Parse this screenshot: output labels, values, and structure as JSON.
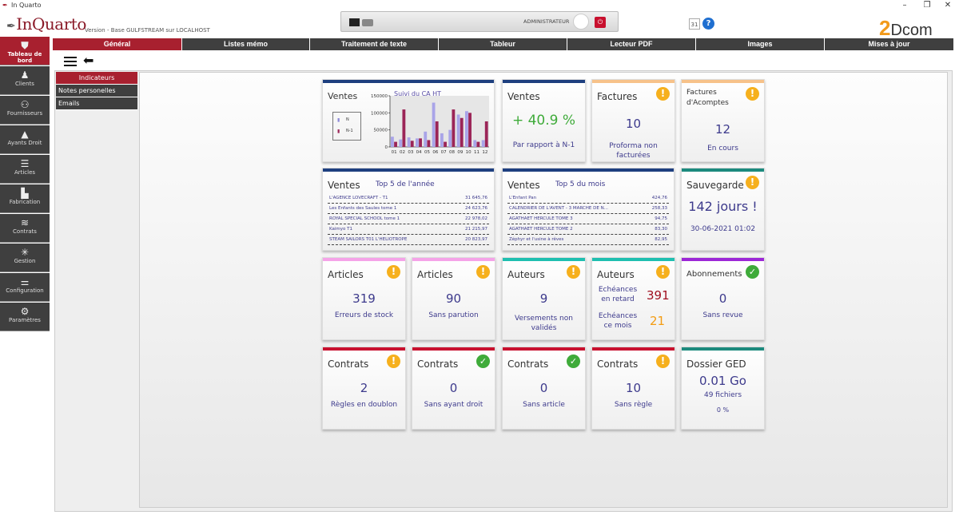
{
  "window": {
    "title": "In Quarto",
    "ctrl_min": "–",
    "ctrl_max": "❐",
    "ctrl_close": "✕"
  },
  "header": {
    "logo": "InQuarto",
    "version": "Version  - Base GULFSTREAM sur LOCALHOST",
    "user": "ADMINISTRATEUR",
    "calendar_day": "31",
    "brand": "2Dcom"
  },
  "tabs": [
    "Général",
    "Listes mémo",
    "Traitement de texte",
    "Tableur",
    "Lecteur PDF",
    "Images",
    "Mises à jour"
  ],
  "sidebar": [
    "Tableau de bord",
    "Clients",
    "Fournisseurs",
    "Ayants Droit",
    "Articles",
    "Fabrication",
    "Contrats",
    "Gestion",
    "Configuration",
    "Paramètres"
  ],
  "subnav": [
    "Indicateurs",
    "Notes personelles",
    "Emails"
  ],
  "cards": {
    "ventes_chart": {
      "title": "Ventes",
      "chart_title": "Suivi du CA HT",
      "legend_n": "N",
      "legend_n1": "N-1"
    },
    "ventes_pct": {
      "title": "Ventes",
      "value": "+ 40.9 %",
      "sub": "Par rapport à N-1"
    },
    "factures": {
      "title": "Factures",
      "value": "10",
      "sub": "Proforma non facturées"
    },
    "acomptes": {
      "title": "Factures d'Acomptes",
      "value": "12",
      "sub": "En cours"
    },
    "top_annee": {
      "title": "Ventes",
      "subtitle": "Top 5 de l'année",
      "rows": [
        {
          "name": "L'AGENCE LOVECRAFT - T1",
          "value": "31 645,76"
        },
        {
          "name": "Les Enfants des Saules tome 1",
          "value": "24 623,76"
        },
        {
          "name": "ROYAL SPECIAL SCHOOL tome 1",
          "value": "22 978,02"
        },
        {
          "name": "Kaimyo T1",
          "value": "21 215,97"
        },
        {
          "name": "STEAM SAILORS T01 L'HELIOTROPE",
          "value": "20 823,97"
        }
      ]
    },
    "top_mois": {
      "title": "Ventes",
      "subtitle": "Top 5 du mois",
      "rows": [
        {
          "name": "L'Enfant Pan",
          "value": "424,76"
        },
        {
          "name": "CALENDRIER DE L'AVENT - 3 MARCHE DE N...",
          "value": "258,33"
        },
        {
          "name": "AGATHAET HERCULE TOME 3",
          "value": "94,75"
        },
        {
          "name": "AGATHAET HERCULE TOME 2",
          "value": "83,30"
        },
        {
          "name": "Zéphyr et l'usine à rêves",
          "value": "82,95"
        }
      ]
    },
    "sauvegarde": {
      "title": "Sauvegarde",
      "value": "142 jours !",
      "sub": "30-06-2021 01:02"
    },
    "articles1": {
      "title": "Articles",
      "value": "319",
      "sub": "Erreurs de stock"
    },
    "articles2": {
      "title": "Articles",
      "value": "90",
      "sub": "Sans parution"
    },
    "auteurs1": {
      "title": "Auteurs",
      "value": "9",
      "sub": "Versements non validés"
    },
    "auteurs2": {
      "title": "Auteurs",
      "label1": "Echéances en retard",
      "value1": "391",
      "label2": "Echéances ce mois",
      "value2": "21"
    },
    "abonnements": {
      "title": "Abonnements",
      "value": "0",
      "sub": "Sans revue"
    },
    "contrats1": {
      "title": "Contrats",
      "value": "2",
      "sub": "Règles en doublon"
    },
    "contrats2": {
      "title": "Contrats",
      "value": "0",
      "sub": "Sans ayant droit"
    },
    "contrats3": {
      "title": "Contrats",
      "value": "0",
      "sub": "Sans article"
    },
    "contrats4": {
      "title": "Contrats",
      "value": "10",
      "sub": "Sans règle"
    },
    "ged": {
      "title": "Dossier GED",
      "value": "0.01 Go",
      "sub1": "49 fichiers",
      "sub2": "0 %"
    }
  },
  "chart_data": {
    "type": "bar",
    "title": "Suivi du CA HT",
    "categories": [
      "01",
      "02",
      "03",
      "04",
      "05",
      "06",
      "07",
      "08",
      "09",
      "10",
      "11",
      "12"
    ],
    "series": [
      {
        "name": "N",
        "color": "#a9a4e8",
        "values": [
          30000,
          22000,
          28000,
          25000,
          45000,
          130000,
          40000,
          50000,
          95000,
          105000,
          20000,
          20000
        ]
      },
      {
        "name": "N-1",
        "color": "#9b2557",
        "values": [
          15000,
          110000,
          18000,
          25000,
          20000,
          75000,
          15000,
          110000,
          85000,
          100000,
          15000,
          75000
        ]
      }
    ],
    "ylim": [
      0,
      150000
    ],
    "yticks": [
      "150000",
      "100000",
      "50000",
      "0"
    ]
  }
}
